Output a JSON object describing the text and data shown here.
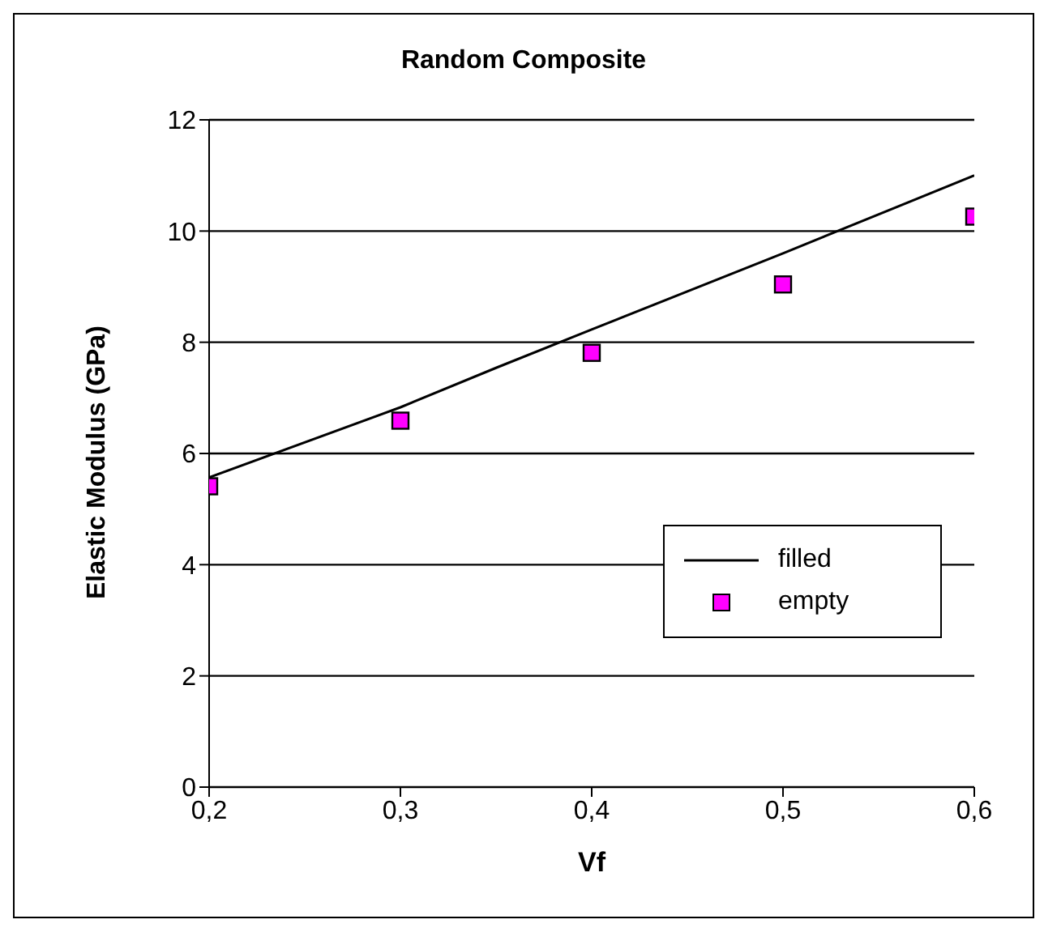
{
  "chart_data": {
    "type": "line",
    "title": "Random Composite",
    "xlabel": "Vf",
    "ylabel": "Elastic Modulus (GPa)",
    "x": [
      0.2,
      0.3,
      0.4,
      0.5,
      0.6
    ],
    "series": [
      {
        "name": "filled",
        "color": "#000000",
        "marker": "none",
        "x": [
          0.2,
          0.3,
          0.35,
          0.4,
          0.5,
          0.6
        ],
        "values": [
          5.57,
          6.83,
          7.54,
          8.23,
          9.6,
          11.0
        ]
      },
      {
        "name": "empty",
        "type": "scatter",
        "color": "#ff00ff",
        "marker": "square",
        "values": [
          5.41,
          6.59,
          7.81,
          9.04,
          10.26
        ]
      }
    ],
    "xlim": [
      0.2,
      0.6
    ],
    "xticks": [
      {
        "value": 0.2,
        "label": "0,2"
      },
      {
        "value": 0.3,
        "label": "0,3"
      },
      {
        "value": 0.4,
        "label": "0,4"
      },
      {
        "value": 0.5,
        "label": "0,5"
      },
      {
        "value": 0.6,
        "label": "0,6"
      }
    ],
    "ylim": [
      0,
      12
    ],
    "yticks": [
      0,
      2,
      4,
      6,
      8,
      10,
      12
    ],
    "grid": "y",
    "legend": "bottom right"
  }
}
